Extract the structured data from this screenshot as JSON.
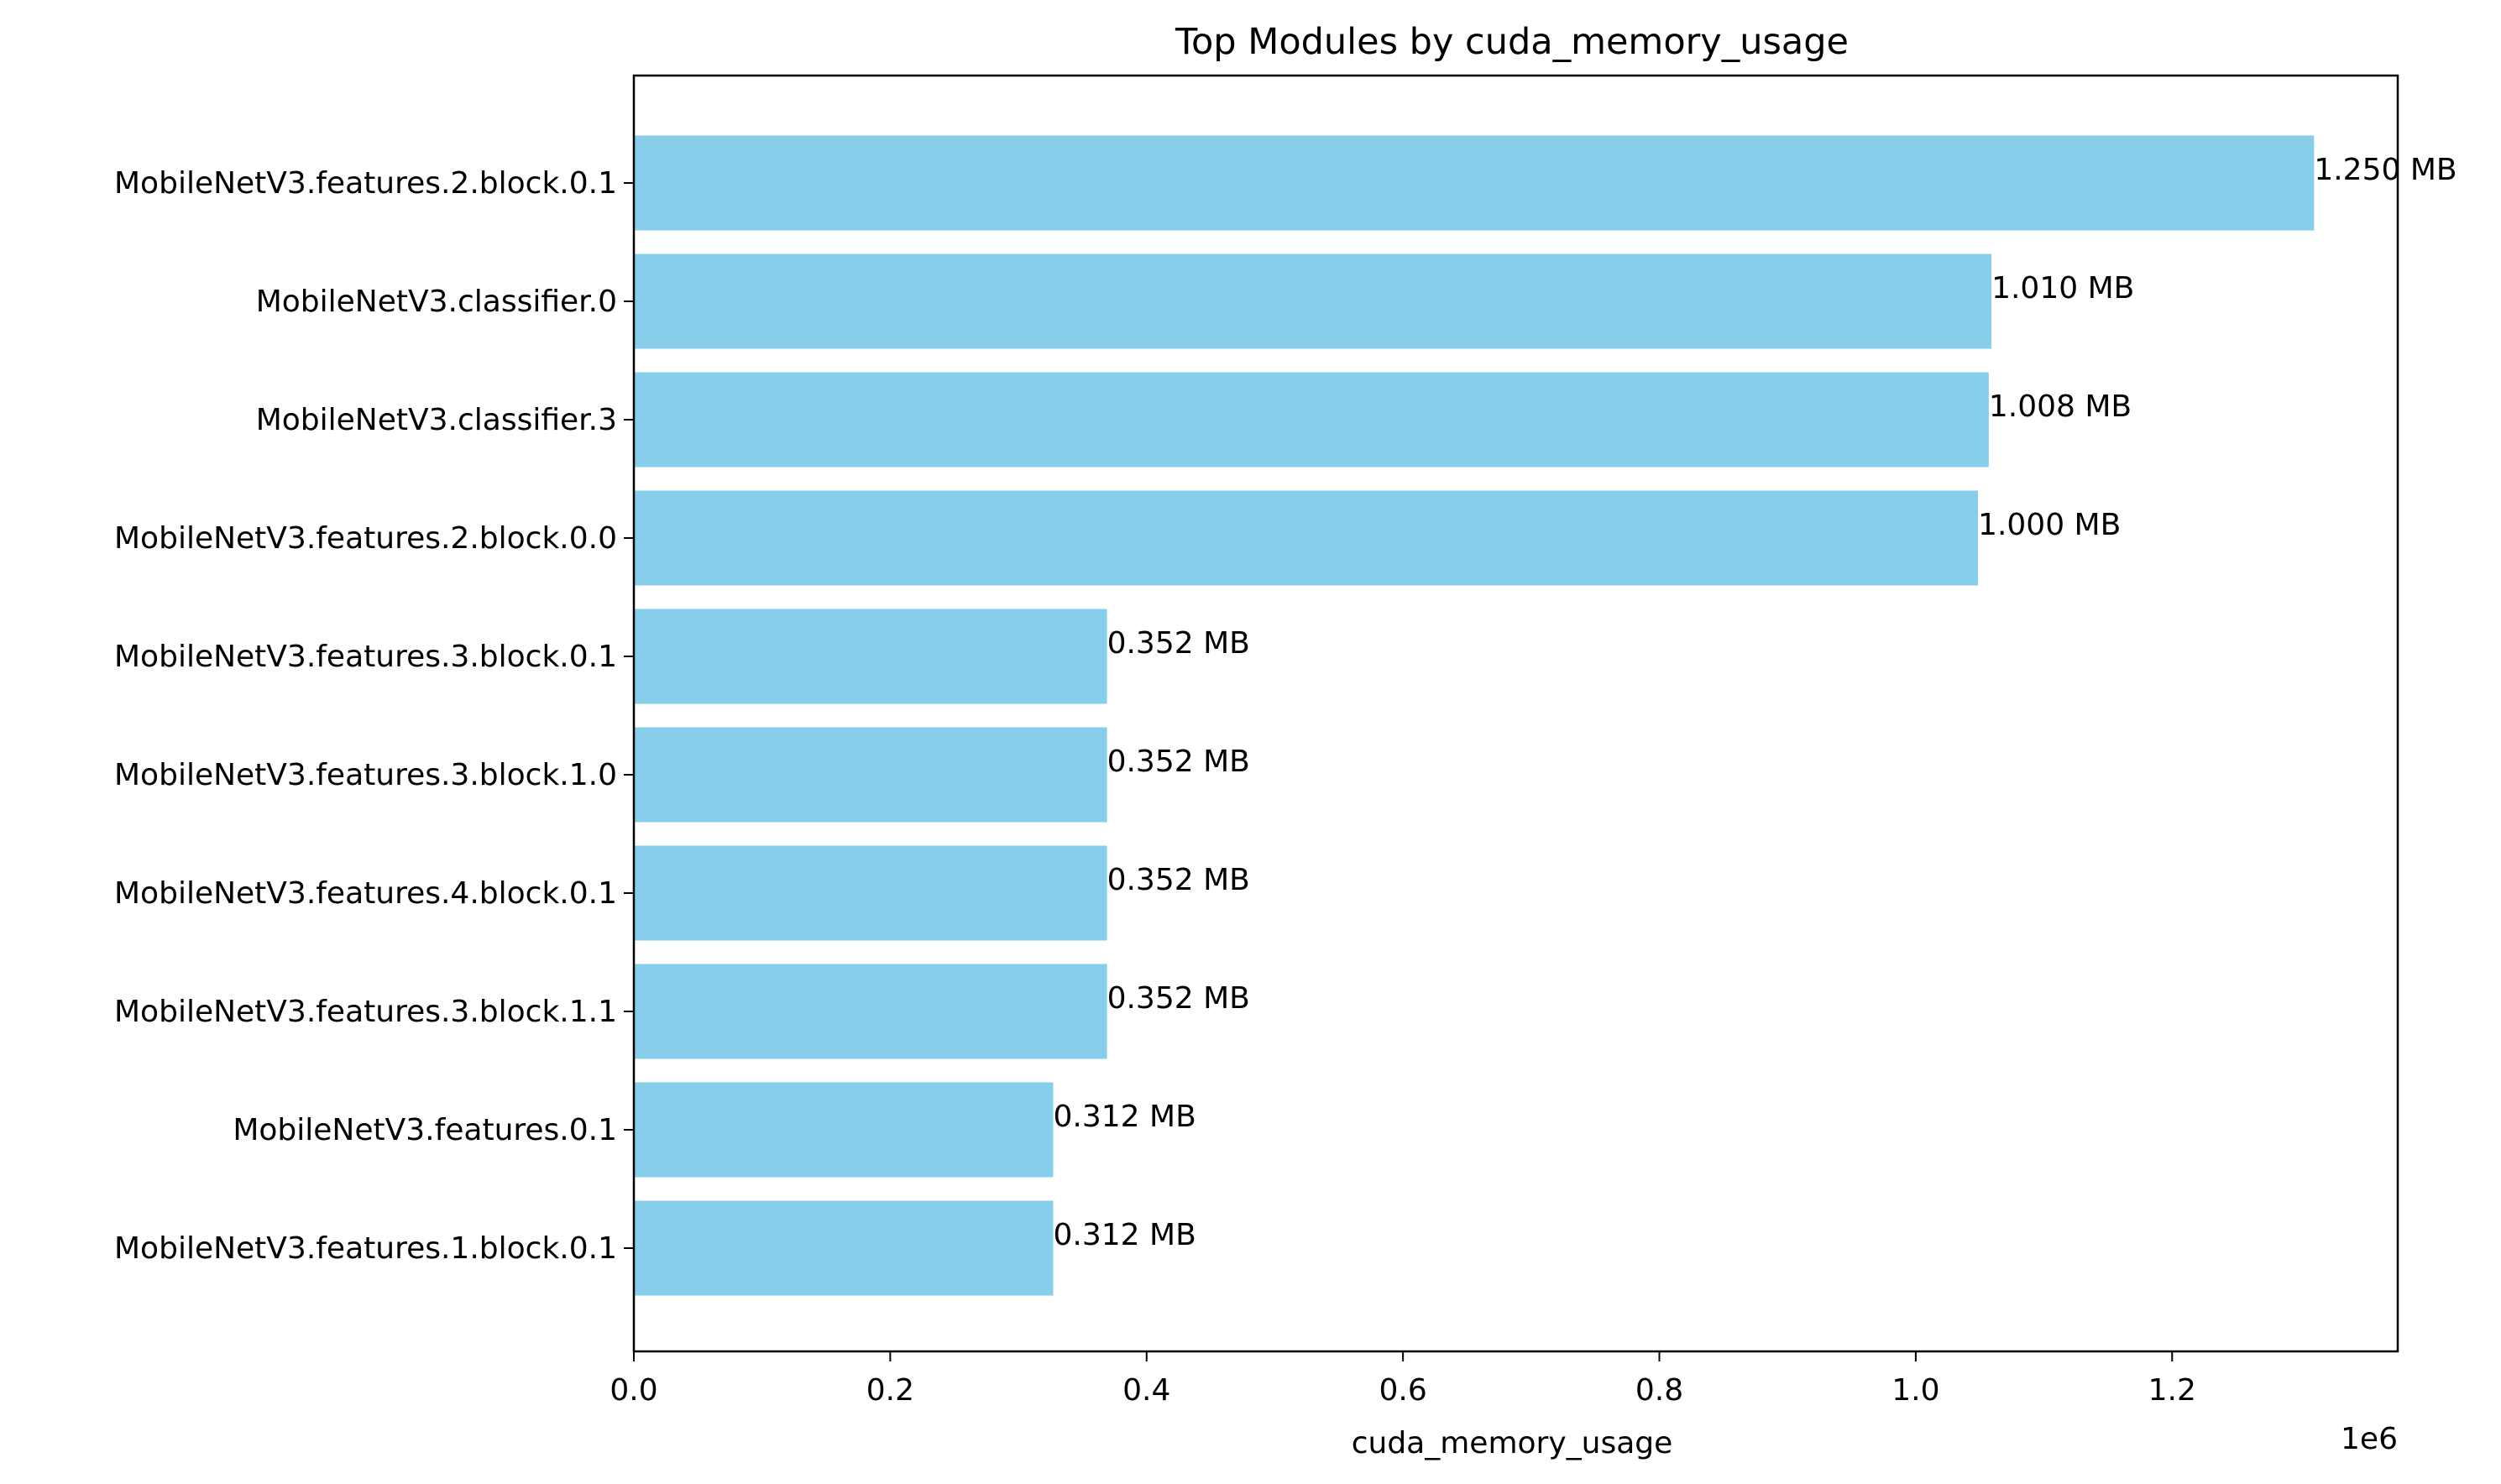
{
  "chart_data": {
    "type": "bar",
    "orientation": "horizontal",
    "title": "Top Modules by cuda_memory_usage",
    "xlabel": "cuda_memory_usage",
    "ylabel": "",
    "x_scale_label": "1e6",
    "xlim": [
      0,
      1376000
    ],
    "x_ticks": [
      0,
      200000,
      400000,
      600000,
      800000,
      1000000,
      1200000
    ],
    "x_tick_labels": [
      "0.0",
      "0.2",
      "0.4",
      "0.6",
      "0.8",
      "1.0",
      "1.2"
    ],
    "grid": false,
    "legend": "none",
    "bar_color": "#87CEEB",
    "categories": [
      "MobileNetV3.features.2.block.0.1",
      "MobileNetV3.classifier.0",
      "MobileNetV3.classifier.3",
      "MobileNetV3.features.2.block.0.0",
      "MobileNetV3.features.3.block.0.1",
      "MobileNetV3.features.3.block.1.0",
      "MobileNetV3.features.4.block.0.1",
      "MobileNetV3.features.3.block.1.1",
      "MobileNetV3.features.0.1",
      "MobileNetV3.features.1.block.0.1"
    ],
    "values": [
      1310720,
      1059061,
      1056964,
      1048576,
      369099,
      369099,
      369099,
      369099,
      327155,
      327155
    ],
    "data_labels": [
      "1.250 MB",
      "1.010 MB",
      "1.008 MB",
      "1.000 MB",
      "0.352 MB",
      "0.352 MB",
      "0.352 MB",
      "0.352 MB",
      "0.312 MB",
      "0.312 MB"
    ]
  }
}
